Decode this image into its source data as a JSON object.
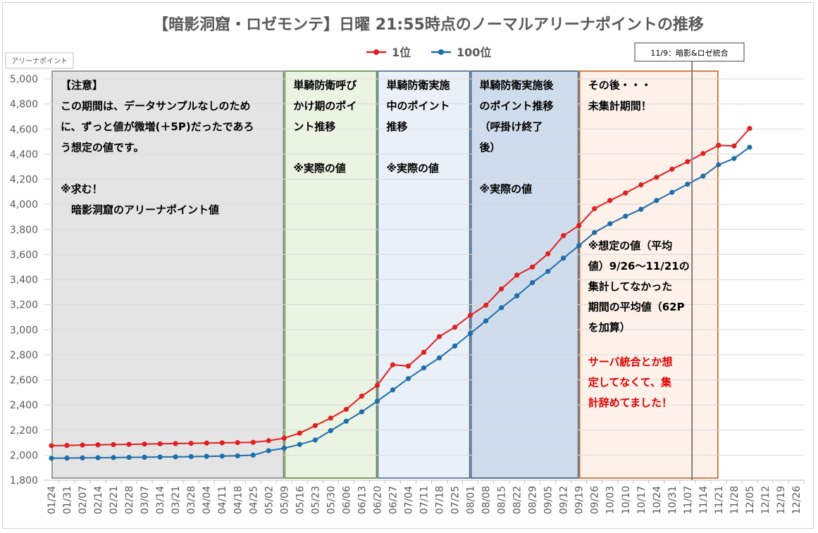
{
  "chart_data": {
    "type": "line",
    "title": "【暗影洞窟・ロゼモンテ】日曜 21:55時点のノーマルアリーナポイントの推移",
    "ylabel": "アリーナポイント",
    "ylim": [
      1800,
      5000
    ],
    "yticks": [
      "1,800",
      "2,000",
      "2,200",
      "2,400",
      "2,600",
      "2,800",
      "3,000",
      "3,200",
      "3,400",
      "3,600",
      "3,800",
      "4,000",
      "4,200",
      "4,400",
      "4,600",
      "4,800",
      "5,000"
    ],
    "categories": [
      "01/24",
      "01/31",
      "02/07",
      "02/14",
      "02/21",
      "02/28",
      "03/07",
      "03/14",
      "03/21",
      "03/28",
      "04/04",
      "04/11",
      "04/18",
      "04/25",
      "05/02",
      "05/09",
      "05/16",
      "05/23",
      "05/30",
      "06/06",
      "06/13",
      "06/20",
      "06/27",
      "07/04",
      "07/11",
      "07/18",
      "07/25",
      "08/01",
      "08/08",
      "08/15",
      "08/22",
      "08/29",
      "09/05",
      "09/12",
      "09/19",
      "09/26",
      "10/03",
      "10/10",
      "10/17",
      "10/24",
      "10/31",
      "11/07",
      "11/14",
      "11/21",
      "11/28",
      "12/05",
      "12/12",
      "12/19",
      "12/26"
    ],
    "legend_position": "top-center",
    "grid": true,
    "series": [
      {
        "name": "1位",
        "color": "#e02020",
        "values": [
          2075,
          2077,
          2080,
          2082,
          2084,
          2086,
          2088,
          2090,
          2092,
          2094,
          2096,
          2098,
          2100,
          2102,
          2115,
          2135,
          2175,
          2235,
          2295,
          2365,
          2470,
          2555,
          2720,
          2710,
          2820,
          2945,
          3020,
          3115,
          3195,
          3325,
          3435,
          3500,
          3605,
          3750,
          3830,
          3965,
          4030,
          4090,
          4155,
          4215,
          4280,
          4340,
          4405,
          4470,
          4465,
          4605,
          null,
          null,
          null
        ]
      },
      {
        "name": "100位",
        "color": "#1f6ea8",
        "values": [
          1975,
          1976,
          1978,
          1979,
          1980,
          1982,
          1983,
          1985,
          1986,
          1988,
          1990,
          1992,
          1994,
          2000,
          2035,
          2055,
          2085,
          2120,
          2195,
          2270,
          2345,
          2430,
          2520,
          2610,
          2695,
          2775,
          2870,
          2970,
          3070,
          3175,
          3270,
          3375,
          3465,
          3570,
          3670,
          3775,
          3845,
          3905,
          3960,
          4030,
          4095,
          4160,
          4225,
          4315,
          4365,
          4455,
          null,
          null,
          null
        ]
      }
    ],
    "annotation_line": {
      "label": "11/9：暗影&ロゼ統合",
      "x": "11/09"
    },
    "regions": [
      {
        "fill": "#e4e4e4",
        "border": "#808080",
        "text": [
          "【注意】",
          "この期間は、データサンプルなしのため",
          "に、ずっと値が微増(＋5P)だったであろ",
          "う想定の値です。",
          "",
          "※求む！",
          "　暗影洞窟のアリーナポイント値"
        ],
        "text_color": "#000000",
        "extra": []
      },
      {
        "fill": "#ebf3e3",
        "border": "#548235",
        "text": [
          "単騎防衛呼び",
          "かけ期のポイ",
          "ント推移",
          "",
          "※実際の値"
        ],
        "text_color": "#000000",
        "extra": []
      },
      {
        "fill": "#e9f0f8",
        "border": "#41628a",
        "text": [
          "単騎防衛実施",
          "中のポイント",
          "推移",
          "",
          "※実際の値"
        ],
        "text_color": "#000000",
        "extra": []
      },
      {
        "fill": "#cfdcec",
        "border": "#2f4d70",
        "text": [
          "単騎防衛実施後",
          "のポイント推移",
          "（呼掛け終了",
          "後）",
          "",
          "※実際の値"
        ],
        "text_color": "#000000",
        "extra": []
      },
      {
        "fill": "#fdf1ea",
        "border": "#c55a11",
        "text": [
          "その後・・・",
          "未集計期間！"
        ],
        "text_color": "#000000",
        "extra": [
          {
            "lines": [
              "※想定の値（平均",
              "値）9/26〜11/21の",
              "集計してなかった",
              "期間の平均値（62P",
              "を加算）"
            ],
            "color": "#000000"
          },
          {
            "lines": [
              "サーバ統合とか想",
              "定してなくて、集",
              "計辞めてました！"
            ],
            "color": "#e00000"
          }
        ]
      }
    ]
  }
}
